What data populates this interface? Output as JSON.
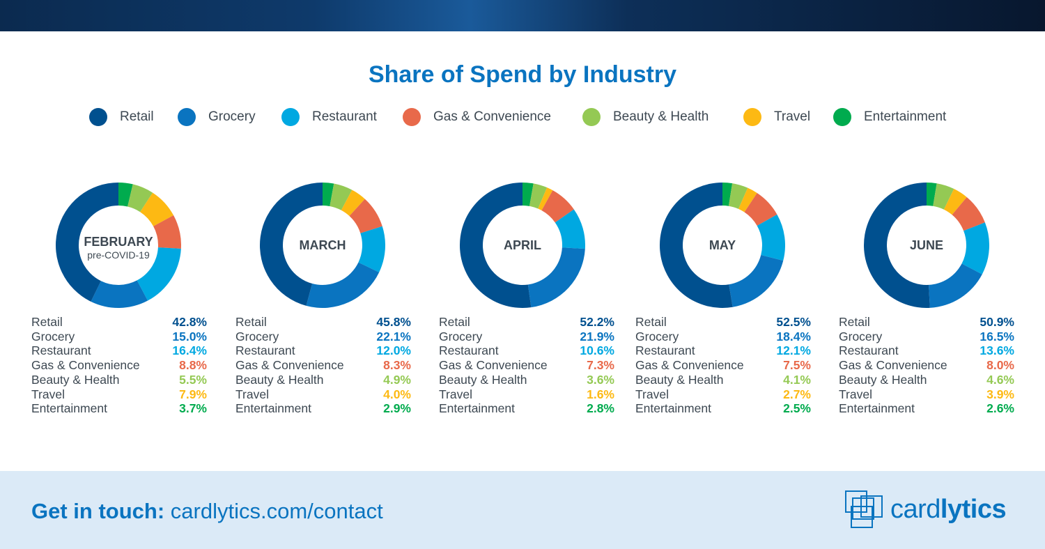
{
  "title": "Share of Spend by Industry",
  "colors": {
    "Retail": "#00508f",
    "Grocery": "#0a74c0",
    "Restaurant": "#00a8e1",
    "Gas & Convenience": "#e8694a",
    "Beauty & Health": "#94c954",
    "Travel": "#fdb913",
    "Entertainment": "#00ab4e"
  },
  "chart_data": {
    "type": "pie",
    "variant": "donut",
    "categories": [
      "Retail",
      "Grocery",
      "Restaurant",
      "Gas & Convenience",
      "Beauty & Health",
      "Travel",
      "Entertainment"
    ],
    "legend_placement": "top",
    "charts": [
      {
        "label": "FEBRUARY",
        "sublabel": "pre-COVID-19",
        "values": [
          42.8,
          15.0,
          16.4,
          8.8,
          5.5,
          7.9,
          3.7
        ]
      },
      {
        "label": "MARCH",
        "values": [
          45.8,
          22.1,
          12.0,
          8.3,
          4.9,
          4.0,
          2.9
        ]
      },
      {
        "label": "APRIL",
        "values": [
          52.2,
          21.9,
          10.6,
          7.3,
          3.6,
          1.6,
          2.8
        ]
      },
      {
        "label": "MAY",
        "values": [
          52.5,
          18.4,
          12.1,
          7.5,
          4.1,
          2.7,
          2.5
        ]
      },
      {
        "label": "JUNE",
        "values": [
          50.9,
          16.5,
          13.6,
          8.0,
          4.6,
          3.9,
          2.6
        ]
      }
    ]
  },
  "footer": {
    "contact_bold": "Get in touch:",
    "contact_link": "cardlytics.com/contact",
    "logo": "cardlytics"
  }
}
